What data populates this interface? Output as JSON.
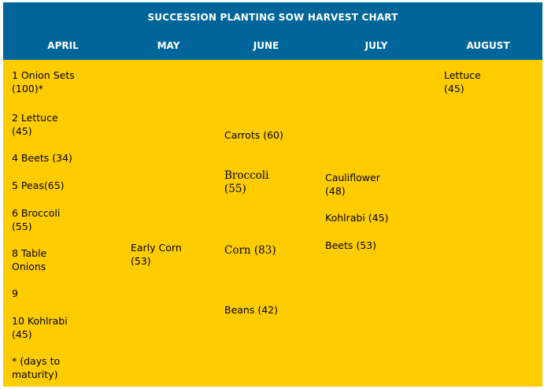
{
  "title": "SUCCESSION PLANTING SOW HARVEST CHART",
  "columns": [
    "APRIL",
    "MAY",
    "JUNE",
    "JULY",
    "AUGUST"
  ],
  "colors": {
    "header_bg": "#006699",
    "body_bg": "#ffcc00",
    "header_text": "#ffffff"
  },
  "april": [
    "1 Onion Sets (100)*",
    "2 Lettuce (45)",
    "4 Beets (34)",
    "5 Peas(65)",
    "6 Broccoli (55)",
    "8 Table Onions",
    "9",
    "10 Kohlrabi (45)",
    "* (days to maturity)"
  ],
  "may": [
    "Early Corn (53)"
  ],
  "june": [
    "Carrots (60)",
    "Broccoli (55)",
    "Corn (83)",
    "Beans (42)"
  ],
  "july": [
    "Cauliflower (48)",
    "Kohlrabi (45)",
    "Beets (53)"
  ],
  "august": [
    "Lettuce (45)"
  ]
}
